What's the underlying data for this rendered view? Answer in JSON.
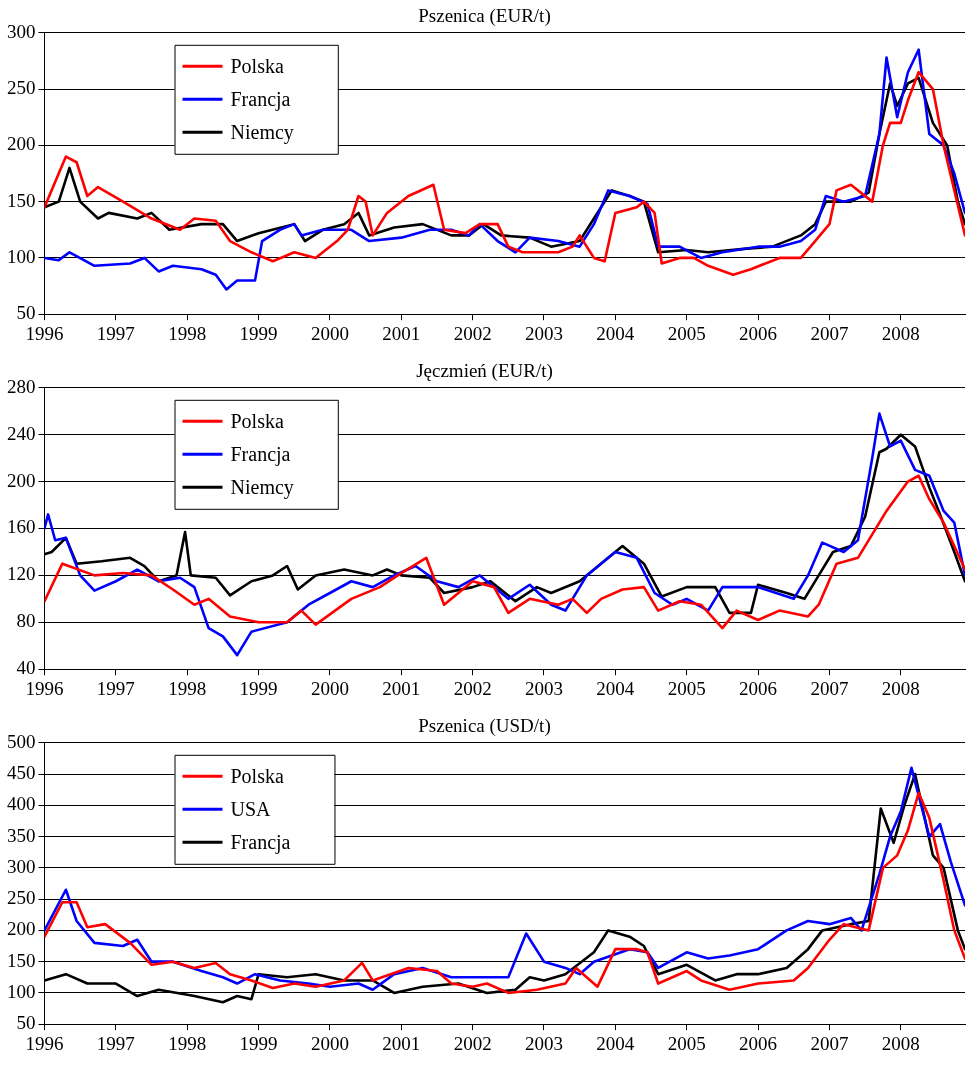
{
  "chart_data": [
    {
      "type": "line",
      "title": "Pszenica (EUR/t)",
      "xlim": [
        1996,
        2008.9
      ],
      "xticks": [
        1996,
        1997,
        1998,
        1999,
        2000,
        2001,
        2002,
        2003,
        2004,
        2005,
        2006,
        2007,
        2008
      ],
      "ylim": [
        50,
        300
      ],
      "yticks": [
        50,
        100,
        150,
        200,
        250,
        300
      ],
      "grid": "y",
      "legend": "top left",
      "series": [
        {
          "name": "Polska",
          "color": "#ff0000",
          "x": [
            1996,
            1996.3,
            1996.45,
            1996.6,
            1996.75,
            1997.1,
            1997.5,
            1997.9,
            1998.1,
            1998.4,
            1998.6,
            1998.9,
            1999.2,
            1999.5,
            1999.8,
            2000.1,
            2000.25,
            2000.4,
            2000.5,
            2000.6,
            2000.8,
            2001.1,
            2001.45,
            2001.6,
            2001.9,
            2002.1,
            2002.35,
            2002.5,
            2002.7,
            2003.2,
            2003.4,
            2003.5,
            2003.7,
            2003.85,
            2004,
            2004.3,
            2004.4,
            2004.55,
            2004.65,
            2004.9,
            2005.1,
            2005.3,
            2005.65,
            2005.9,
            2006.3,
            2006.6,
            2006.8,
            2007,
            2007.1,
            2007.3,
            2007.6,
            2007.75,
            2007.85,
            2008,
            2008.1,
            2008.25,
            2008.45,
            2008.6,
            2008.75,
            2008.9
          ],
          "values": [
            145,
            190,
            185,
            155,
            163,
            150,
            135,
            125,
            135,
            133,
            115,
            105,
            97,
            105,
            100,
            115,
            125,
            155,
            150,
            120,
            140,
            155,
            165,
            125,
            122,
            130,
            130,
            110,
            105,
            105,
            110,
            120,
            100,
            97,
            140,
            145,
            150,
            140,
            95,
            100,
            100,
            93,
            85,
            90,
            100,
            100,
            115,
            130,
            160,
            165,
            150,
            200,
            220,
            220,
            240,
            265,
            250,
            200,
            160,
            120
          ]
        },
        {
          "name": "Francja",
          "color": "#0000ff",
          "x": [
            1996,
            1996.2,
            1996.35,
            1996.7,
            1997.2,
            1997.4,
            1997.6,
            1997.8,
            1998.2,
            1998.4,
            1998.55,
            1998.7,
            1998.95,
            1999.05,
            1999.3,
            1999.5,
            1999.6,
            1999.9,
            2000.3,
            2000.55,
            2001,
            2001.4,
            2001.7,
            2001.95,
            2002.1,
            2002.35,
            2002.6,
            2002.8,
            2003.2,
            2003.5,
            2003.7,
            2003.9,
            2004.2,
            2004.45,
            2004.6,
            2004.9,
            2005.2,
            2005.5,
            2006,
            2006.3,
            2006.6,
            2006.8,
            2006.95,
            2007.2,
            2007.5,
            2007.7,
            2007.8,
            2007.95,
            2008.1,
            2008.25,
            2008.4,
            2008.6,
            2008.75,
            2008.9
          ],
          "values": [
            100,
            98,
            105,
            93,
            95,
            100,
            88,
            93,
            90,
            85,
            72,
            80,
            80,
            115,
            125,
            130,
            120,
            125,
            125,
            115,
            118,
            125,
            125,
            120,
            130,
            115,
            105,
            118,
            115,
            110,
            130,
            160,
            155,
            148,
            110,
            110,
            100,
            105,
            110,
            110,
            115,
            125,
            155,
            150,
            155,
            210,
            278,
            225,
            265,
            285,
            210,
            200,
            175,
            140
          ]
        },
        {
          "name": "Niemcy",
          "color": "#000000",
          "x": [
            1996,
            1996.2,
            1996.35,
            1996.5,
            1996.75,
            1996.9,
            1997.3,
            1997.5,
            1997.75,
            1998.2,
            1998.5,
            1998.7,
            1999,
            1999.5,
            1999.65,
            1999.9,
            2000.2,
            2000.4,
            2000.55,
            2000.9,
            2001.3,
            2001.7,
            2001.95,
            2002.15,
            2002.4,
            2002.8,
            2003.1,
            2003.5,
            2003.8,
            2003.95,
            2004.2,
            2004.4,
            2004.6,
            2005,
            2005.3,
            2005.8,
            2006.2,
            2006.6,
            2006.8,
            2006.95,
            2007.3,
            2007.55,
            2007.7,
            2007.85,
            2007.95,
            2008.1,
            2008.25,
            2008.45,
            2008.65,
            2008.8,
            2008.9
          ],
          "values": [
            145,
            150,
            180,
            150,
            135,
            140,
            135,
            140,
            125,
            130,
            130,
            115,
            122,
            130,
            115,
            125,
            130,
            140,
            120,
            127,
            130,
            120,
            120,
            130,
            120,
            118,
            110,
            115,
            145,
            160,
            155,
            150,
            105,
            107,
            105,
            108,
            110,
            120,
            130,
            150,
            150,
            158,
            210,
            255,
            235,
            255,
            260,
            220,
            200,
            150,
            130
          ]
        }
      ]
    },
    {
      "type": "line",
      "title": "Jęczmień (EUR/t)",
      "xlim": [
        1996,
        2008.9
      ],
      "xticks": [
        1996,
        1997,
        1998,
        1999,
        2000,
        2001,
        2002,
        2003,
        2004,
        2005,
        2006,
        2007,
        2008
      ],
      "ylim": [
        40,
        280
      ],
      "yticks": [
        40,
        80,
        120,
        160,
        200,
        240,
        280
      ],
      "grid": "y",
      "legend": "top left",
      "series": [
        {
          "name": "Polska",
          "color": "#ff0000",
          "x": [
            1996,
            1996.25,
            1996.7,
            1997.1,
            1997.5,
            1997.8,
            1998.1,
            1998.3,
            1998.6,
            1999,
            1999.4,
            1999.6,
            1999.8,
            2000.3,
            2000.7,
            2001,
            2001.35,
            2001.6,
            2002,
            2002.3,
            2002.5,
            2002.8,
            2003.2,
            2003.4,
            2003.6,
            2003.8,
            2004.1,
            2004.4,
            2004.6,
            2004.9,
            2005.2,
            2005.5,
            2005.7,
            2006,
            2006.3,
            2006.7,
            2006.85,
            2007.1,
            2007.4,
            2007.6,
            2007.8,
            2008.1,
            2008.25,
            2008.4,
            2008.6,
            2008.9
          ],
          "values": [
            98,
            130,
            120,
            122,
            120,
            108,
            95,
            100,
            85,
            80,
            80,
            90,
            78,
            100,
            110,
            122,
            135,
            95,
            115,
            110,
            88,
            100,
            95,
            100,
            88,
            100,
            108,
            110,
            90,
            98,
            95,
            75,
            90,
            82,
            90,
            85,
            95,
            130,
            135,
            155,
            175,
            200,
            205,
            185,
            165,
            125
          ]
        },
        {
          "name": "Francja",
          "color": "#0000ff",
          "x": [
            1996,
            1996.05,
            1996.15,
            1996.3,
            1996.5,
            1996.7,
            1997,
            1997.3,
            1997.6,
            1997.9,
            1998.1,
            1998.3,
            1998.5,
            1998.7,
            1998.9,
            1999.4,
            1999.7,
            2000,
            2000.3,
            2000.6,
            2000.9,
            2001.2,
            2001.5,
            2001.8,
            2002.1,
            2002.5,
            2002.8,
            2003.1,
            2003.3,
            2003.6,
            2004,
            2004.3,
            2004.55,
            2004.8,
            2005,
            2005.3,
            2005.5,
            2006,
            2006.5,
            2006.7,
            2006.9,
            2007.2,
            2007.4,
            2007.6,
            2007.7,
            2007.85,
            2008,
            2008.2,
            2008.4,
            2008.6,
            2008.75,
            2008.9
          ],
          "values": [
            160,
            172,
            150,
            152,
            120,
            107,
            115,
            125,
            115,
            118,
            110,
            75,
            68,
            52,
            72,
            80,
            95,
            105,
            115,
            110,
            120,
            128,
            115,
            110,
            120,
            100,
            112,
            95,
            90,
            120,
            140,
            135,
            105,
            95,
            100,
            90,
            110,
            110,
            100,
            120,
            148,
            140,
            150,
            220,
            258,
            230,
            235,
            210,
            205,
            175,
            165,
            120
          ]
        },
        {
          "name": "Niemcy",
          "color": "#000000",
          "x": [
            1996,
            1996.1,
            1996.3,
            1996.45,
            1996.8,
            1997.2,
            1997.4,
            1997.6,
            1997.85,
            1997.97,
            1998.05,
            1998.4,
            1998.6,
            1998.9,
            1999.2,
            1999.4,
            1999.55,
            1999.8,
            2000.2,
            2000.6,
            2000.8,
            2001,
            2001.4,
            2001.6,
            2002,
            2002.25,
            2002.6,
            2002.9,
            2003.1,
            2003.5,
            2003.9,
            2004.1,
            2004.4,
            2004.65,
            2005,
            2005.4,
            2005.6,
            2005.9,
            2006,
            2006.4,
            2006.65,
            2006.85,
            2007.05,
            2007.3,
            2007.5,
            2007.7,
            2007.8,
            2008,
            2008.2,
            2008.4,
            2008.55,
            2008.75,
            2008.9
          ],
          "values": [
            138,
            140,
            152,
            130,
            132,
            135,
            128,
            115,
            120,
            157,
            120,
            118,
            103,
            115,
            120,
            128,
            108,
            120,
            125,
            120,
            125,
            120,
            118,
            105,
            110,
            115,
            98,
            110,
            105,
            115,
            135,
            145,
            130,
            102,
            110,
            110,
            88,
            88,
            112,
            105,
            100,
            120,
            140,
            145,
            170,
            225,
            228,
            240,
            230,
            195,
            172,
            140,
            115
          ]
        }
      ]
    },
    {
      "type": "line",
      "title": "Pszenica (USD/t)",
      "xlim": [
        1996,
        2008.9
      ],
      "xticks": [
        1996,
        1997,
        1998,
        1999,
        2000,
        2001,
        2002,
        2003,
        2004,
        2005,
        2006,
        2007,
        2008
      ],
      "ylim": [
        50,
        500
      ],
      "yticks": [
        50,
        100,
        150,
        200,
        250,
        300,
        350,
        400,
        450,
        500
      ],
      "grid": "y",
      "legend": "top left",
      "series": [
        {
          "name": "Polska",
          "color": "#ff0000",
          "x": [
            1996,
            1996.25,
            1996.45,
            1996.6,
            1996.85,
            1997.2,
            1997.5,
            1997.8,
            1998.1,
            1998.4,
            1998.6,
            1998.9,
            1999.2,
            1999.5,
            1999.8,
            2000.2,
            2000.45,
            2000.6,
            2001.1,
            2001.5,
            2001.7,
            2002,
            2002.2,
            2002.5,
            2002.9,
            2003.3,
            2003.45,
            2003.75,
            2004,
            2004.3,
            2004.45,
            2004.6,
            2005,
            2005.2,
            2005.6,
            2006,
            2006.5,
            2006.7,
            2007,
            2007.2,
            2007.55,
            2007.75,
            2007.95,
            2008.1,
            2008.25,
            2008.4,
            2008.6,
            2008.75,
            2008.9
          ],
          "values": [
            190,
            245,
            245,
            205,
            210,
            180,
            145,
            150,
            140,
            148,
            130,
            120,
            108,
            115,
            110,
            120,
            148,
            120,
            140,
            135,
            115,
            110,
            115,
            100,
            105,
            115,
            140,
            110,
            170,
            170,
            165,
            115,
            135,
            120,
            105,
            115,
            120,
            140,
            185,
            210,
            200,
            300,
            320,
            360,
            420,
            380,
            280,
            200,
            155
          ]
        },
        {
          "name": "USA",
          "color": "#0000ff",
          "x": [
            1996,
            1996.3,
            1996.45,
            1996.7,
            1997.1,
            1997.3,
            1997.5,
            1997.8,
            1998.2,
            1998.5,
            1998.7,
            1998.95,
            1999.3,
            1999.7,
            2000,
            2000.4,
            2000.6,
            2000.9,
            2001.3,
            2001.7,
            2002.2,
            2002.5,
            2002.75,
            2003,
            2003.3,
            2003.5,
            2003.7,
            2004.2,
            2004.45,
            2004.6,
            2005,
            2005.3,
            2005.6,
            2006,
            2006.4,
            2006.7,
            2007,
            2007.3,
            2007.45,
            2007.7,
            2007.85,
            2008,
            2008.15,
            2008.4,
            2008.55,
            2008.7,
            2008.9
          ],
          "values": [
            200,
            265,
            215,
            180,
            175,
            185,
            150,
            150,
            135,
            125,
            115,
            130,
            120,
            115,
            110,
            115,
            105,
            130,
            140,
            125,
            125,
            125,
            195,
            150,
            140,
            130,
            150,
            170,
            165,
            140,
            165,
            155,
            160,
            170,
            200,
            215,
            210,
            220,
            200,
            290,
            350,
            390,
            460,
            350,
            370,
            310,
            240
          ]
        },
        {
          "name": "Francja",
          "color": "#000000",
          "x": [
            1996,
            1996.3,
            1996.6,
            1997,
            1997.3,
            1997.6,
            1998.1,
            1998.5,
            1998.7,
            1998.9,
            1999,
            1999.4,
            1999.8,
            2000.2,
            2000.6,
            2000.9,
            2001.3,
            2001.8,
            2002.2,
            2002.6,
            2002.8,
            2003,
            2003.3,
            2003.7,
            2003.9,
            2004.2,
            2004.4,
            2004.6,
            2005,
            2005.4,
            2005.7,
            2006,
            2006.4,
            2006.7,
            2006.9,
            2007.3,
            2007.55,
            2007.72,
            2007.9,
            2008.05,
            2008.2,
            2008.45,
            2008.6,
            2008.8,
            2008.9
          ],
          "values": [
            120,
            130,
            115,
            115,
            95,
            105,
            95,
            85,
            95,
            90,
            130,
            125,
            130,
            120,
            120,
            100,
            110,
            115,
            100,
            105,
            125,
            120,
            130,
            165,
            200,
            190,
            175,
            130,
            145,
            120,
            130,
            130,
            140,
            170,
            200,
            210,
            215,
            395,
            340,
            400,
            450,
            320,
            300,
            200,
            170
          ]
        }
      ]
    }
  ]
}
